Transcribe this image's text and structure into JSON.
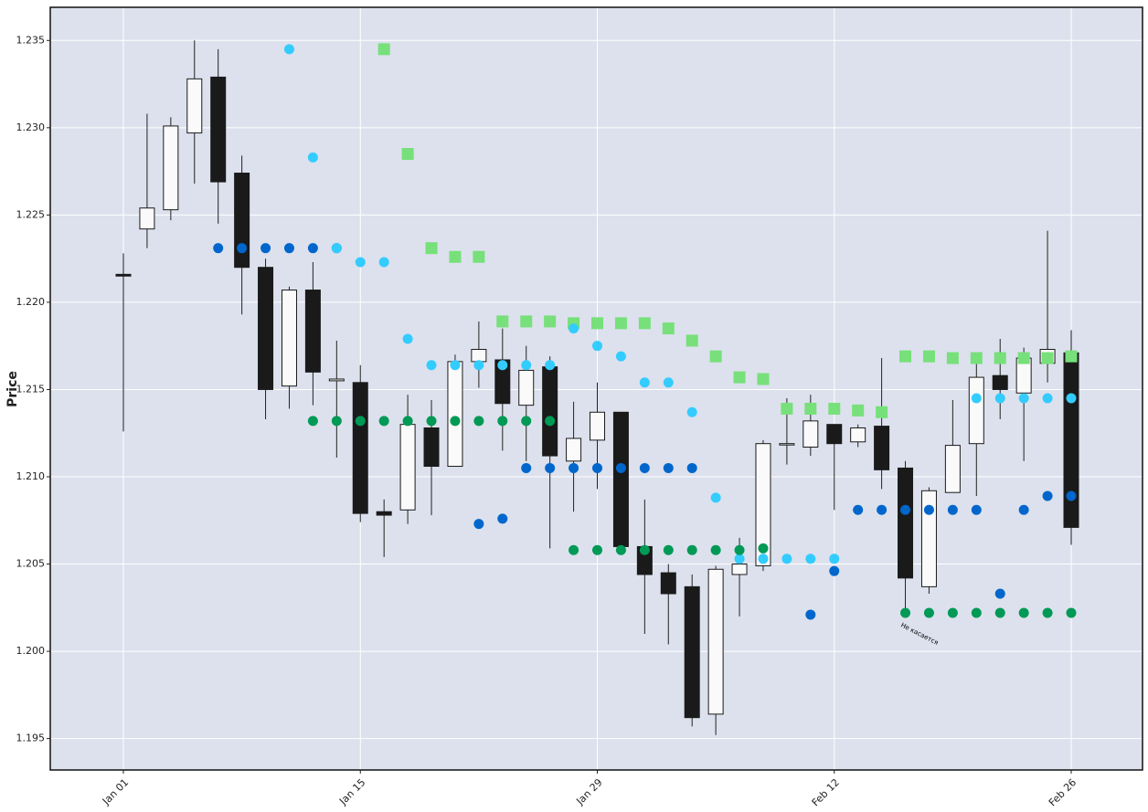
{
  "chart_data": {
    "type": "candlestick",
    "ylabel": "Price",
    "annotation": "Не касается",
    "categories": [
      "Jan 01",
      null,
      null,
      null,
      null,
      null,
      null,
      null,
      null,
      null,
      "Jan 15",
      null,
      null,
      null,
      null,
      null,
      null,
      null,
      null,
      null,
      "Jan 29",
      null,
      null,
      null,
      null,
      null,
      null,
      null,
      null,
      null,
      "Feb 12",
      null,
      null,
      null,
      null,
      null,
      null,
      null,
      null,
      null,
      "Feb 26"
    ],
    "open": [
      1.2216,
      1.2242,
      1.2253,
      1.2297,
      1.2329,
      1.2274,
      1.222,
      1.2152,
      1.2207,
      1.2155,
      1.2154,
      1.208,
      1.2081,
      1.2128,
      1.2106,
      1.2166,
      1.2167,
      1.2141,
      1.2163,
      1.2109,
      1.2121,
      1.2137,
      1.206,
      1.2045,
      1.2037,
      1.1964,
      1.2044,
      1.2049,
      1.2119,
      1.2117,
      1.213,
      1.212,
      1.2129,
      1.2105,
      1.2037,
      1.2091,
      1.2119,
      1.2158,
      1.2148,
      1.2165,
      1.2171
    ],
    "high": [
      1.2228,
      1.2308,
      1.2306,
      1.235,
      1.2345,
      1.2284,
      1.2225,
      1.2209,
      1.2223,
      1.2178,
      1.2164,
      1.2087,
      1.2147,
      1.2144,
      1.217,
      1.2189,
      1.2185,
      1.2175,
      1.2169,
      1.2143,
      1.2154,
      1.2137,
      1.2087,
      1.205,
      1.2044,
      1.2049,
      1.2065,
      1.2121,
      1.2145,
      1.2147,
      1.213,
      1.213,
      1.2168,
      1.2109,
      1.2094,
      1.2144,
      1.2165,
      1.2179,
      1.2174,
      1.2241,
      1.2184
    ],
    "low": [
      1.2126,
      1.2231,
      1.2247,
      1.2268,
      1.2245,
      1.2193,
      1.2133,
      1.2139,
      1.2141,
      1.2111,
      1.2074,
      1.2054,
      1.2073,
      1.2078,
      1.2106,
      1.2151,
      1.2115,
      1.2109,
      1.2059,
      1.208,
      1.2093,
      1.206,
      1.201,
      1.2004,
      1.1957,
      1.1952,
      1.202,
      1.2046,
      1.2107,
      1.2112,
      1.2081,
      1.2117,
      1.2093,
      1.2024,
      1.2033,
      1.2091,
      1.2089,
      1.2133,
      1.2109,
      1.2154,
      1.2061
    ],
    "close": [
      1.2215,
      1.2254,
      1.2301,
      1.2328,
      1.2269,
      1.222,
      1.215,
      1.2207,
      1.216,
      1.2156,
      1.2079,
      1.2078,
      1.213,
      1.2106,
      1.2166,
      1.2173,
      1.2142,
      1.2161,
      1.2112,
      1.2122,
      1.2137,
      1.206,
      1.2044,
      1.2033,
      1.1962,
      1.2047,
      1.205,
      1.2119,
      1.2119,
      1.2132,
      1.2119,
      1.2128,
      1.2104,
      1.2042,
      1.2092,
      1.2118,
      1.2157,
      1.215,
      1.2168,
      1.2173,
      1.2071
    ],
    "up_color": "#fafafa",
    "down_color": "#1a1a1a",
    "overlays": [
      {
        "marker": "square",
        "color": "#77e07a",
        "values": [
          null,
          null,
          null,
          null,
          null,
          null,
          null,
          null,
          null,
          null,
          null,
          1.2345,
          1.2285,
          1.2231,
          1.2226,
          1.2226,
          1.2189,
          1.2189,
          1.2189,
          1.2188,
          1.2188,
          1.2188,
          1.2188,
          1.2185,
          1.2178,
          1.2169,
          1.2157,
          1.2156,
          1.2139,
          1.2139,
          1.2139,
          1.2138,
          1.2137,
          1.2169,
          1.2169,
          1.2168,
          1.2168,
          1.2168,
          1.2168,
          1.2168,
          1.2169
        ]
      },
      {
        "marker": "circle",
        "color": "#0066cc",
        "values": [
          null,
          null,
          null,
          null,
          1.2231,
          1.2231,
          1.2231,
          1.2231,
          1.2231,
          1.2231,
          null,
          null,
          null,
          null,
          null,
          1.2073,
          1.2076,
          1.2105,
          1.2105,
          1.2105,
          1.2105,
          1.2105,
          1.2105,
          1.2105,
          1.2105,
          null,
          null,
          null,
          null,
          1.2021,
          1.2046,
          1.2081,
          1.2081,
          1.2081,
          1.2081,
          1.2081,
          1.2081,
          1.2033,
          1.2081,
          1.2089,
          1.2089
        ]
      },
      {
        "marker": "circle",
        "color": "#33ccff",
        "values": [
          null,
          null,
          null,
          null,
          null,
          null,
          null,
          1.2345,
          1.2283,
          1.2231,
          1.2223,
          1.2223,
          1.2179,
          1.2164,
          1.2164,
          1.2164,
          1.2164,
          1.2164,
          1.2164,
          1.2185,
          1.2175,
          1.2169,
          1.2154,
          1.2154,
          1.2137,
          1.2088,
          1.2053,
          1.2053,
          1.2053,
          1.2053,
          1.2053,
          null,
          null,
          null,
          null,
          null,
          1.2145,
          1.2145,
          1.2145,
          1.2145,
          1.2145
        ]
      },
      {
        "marker": "circle",
        "color": "#009955",
        "values": [
          null,
          null,
          null,
          null,
          null,
          null,
          null,
          null,
          1.2132,
          1.2132,
          1.2132,
          1.2132,
          1.2132,
          1.2132,
          1.2132,
          1.2132,
          1.2132,
          1.2132,
          1.2132,
          1.2058,
          1.2058,
          1.2058,
          1.2058,
          1.2058,
          1.2058,
          1.2058,
          1.2058,
          1.2059,
          null,
          null,
          null,
          null,
          null,
          1.2022,
          1.2022,
          1.2022,
          1.2022,
          1.2022,
          1.2022,
          1.2022,
          1.2022
        ]
      }
    ],
    "ylim": [
      1.1932,
      1.2369
    ],
    "yticks": [
      1.195,
      {
        "value": 1.2,
        "label": "1.200"
      },
      1.205,
      {
        "value": 1.21,
        "label": "1.210"
      },
      1.215,
      {
        "value": 1.22,
        "label": "1.220"
      },
      1.225,
      {
        "value": 1.23,
        "label": "1.230"
      },
      1.235
    ],
    "grid": true,
    "background": "#dce1ed"
  }
}
